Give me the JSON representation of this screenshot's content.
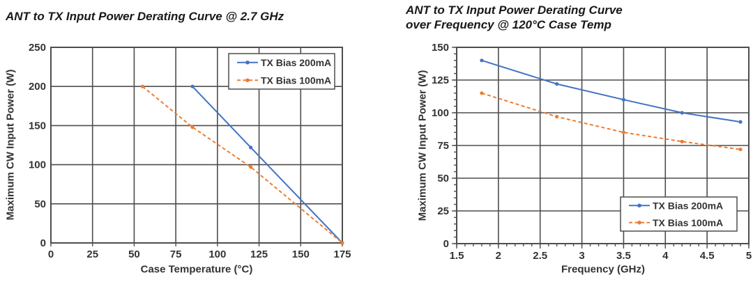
{
  "style": {
    "background": "#ffffff",
    "grid_color": "#4d4d4d",
    "axis_text_color": "#333333",
    "title_color": "#181818",
    "legend_bg": "#ffffff",
    "legend_border_color": "#4d4d4d",
    "series_blue": "#4472C4",
    "series_orange": "#ED7D31"
  },
  "chart_data": [
    {
      "type": "line",
      "title": "ANT to TX Input Power Derating Curve @ 2.7 GHz",
      "title_lines": [
        "ANT to TX Input Power Derating Curve @ 2.7 GHz"
      ],
      "xlabel": "Case Temperature (°C)",
      "ylabel": "Maximum CW Input Power (W)",
      "xlim": [
        0,
        175
      ],
      "ylim": [
        0,
        250
      ],
      "xticks": [
        0,
        25,
        50,
        75,
        100,
        125,
        150,
        175
      ],
      "yticks": [
        0,
        50,
        100,
        150,
        200,
        250
      ],
      "grid": true,
      "legend_position": "top-right",
      "series": [
        {
          "name": "TX Bias 200mA",
          "color": "#4472C4",
          "line_style": "solid",
          "x": [
            85,
            120,
            175
          ],
          "y": [
            200,
            122,
            0
          ]
        },
        {
          "name": "TX Bias 100mA",
          "color": "#ED7D31",
          "line_style": "dashed",
          "x": [
            55,
            85,
            120,
            175
          ],
          "y": [
            200,
            148,
            97,
            0
          ]
        }
      ]
    },
    {
      "type": "line",
      "title": "ANT to TX Input Power Derating Curve over Frequency @ 120°C Case Temp",
      "title_lines": [
        "ANT to TX Input Power Derating Curve",
        "over Frequency @ 120°C Case Temp"
      ],
      "xlabel": "Frequency (GHz)",
      "ylabel": "Maximum CW Input Power (W)",
      "xlim": [
        1.5,
        5
      ],
      "ylim": [
        0,
        150
      ],
      "xticks": [
        1.5,
        2,
        2.5,
        3,
        3.5,
        4,
        4.5,
        5
      ],
      "yticks": [
        0,
        25,
        50,
        75,
        100,
        125,
        150
      ],
      "minor_tick_x": 0.1,
      "minor_tick_y": 5,
      "grid": true,
      "legend_position": "bottom-right",
      "series": [
        {
          "name": "TX Bias 200mA",
          "color": "#4472C4",
          "line_style": "solid",
          "x": [
            1.8,
            2.7,
            3.5,
            4.2,
            4.9
          ],
          "y": [
            140,
            122,
            110,
            100,
            93
          ]
        },
        {
          "name": "TX Bias 100mA",
          "color": "#ED7D31",
          "line_style": "dashed",
          "x": [
            1.8,
            2.7,
            3.5,
            4.2,
            4.9
          ],
          "y": [
            115,
            97,
            85,
            78,
            72
          ]
        }
      ]
    }
  ]
}
